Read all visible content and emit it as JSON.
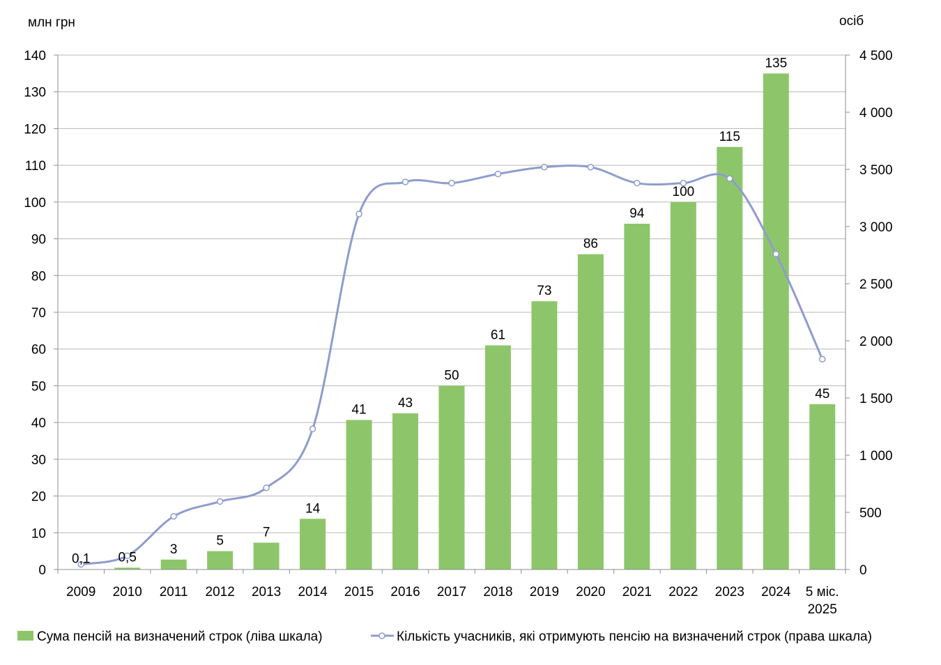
{
  "chart_data": {
    "type": "bar",
    "left_unit": "млн  грн",
    "right_unit": "осіб",
    "categories": [
      [
        "2009"
      ],
      [
        "2010"
      ],
      [
        "2011"
      ],
      [
        "2012"
      ],
      [
        "2013"
      ],
      [
        "2014"
      ],
      [
        "2015"
      ],
      [
        "2016"
      ],
      [
        "2017"
      ],
      [
        "2018"
      ],
      [
        "2019"
      ],
      [
        "2020"
      ],
      [
        "2021"
      ],
      [
        "2022"
      ],
      [
        "2023"
      ],
      [
        "2024"
      ],
      [
        "5 міс.",
        "2025"
      ]
    ],
    "left_axis": {
      "min": 0,
      "max": 140,
      "step": 10,
      "ticks": [
        "0",
        "10",
        "20",
        "30",
        "40",
        "50",
        "60",
        "70",
        "80",
        "90",
        "100",
        "110",
        "120",
        "130",
        "140"
      ]
    },
    "right_axis": {
      "min": 0,
      "max": 4500,
      "step": 500,
      "ticks": [
        "0",
        "500",
        "1 000",
        "1 500",
        "2 000",
        "2 500",
        "3 000",
        "3 500",
        "4 000",
        "4 500"
      ]
    },
    "grid": true,
    "legend_position": "bottom",
    "series": [
      {
        "name": "Сума пенсій на визначений строк (ліва шкала)",
        "type": "bar",
        "axis": "left",
        "color": "#8dc66a",
        "values": [
          0.1,
          0.5,
          2.7,
          5,
          7.3,
          13.8,
          40.7,
          42.5,
          50,
          61,
          73,
          85.8,
          94.1,
          100,
          115,
          135,
          45
        ],
        "labels": [
          "0,1",
          "0,5",
          "3",
          "5",
          "7",
          "14",
          "41",
          "43",
          "50",
          "61",
          "73",
          "86",
          "94",
          "100",
          "115",
          "135",
          "45"
        ]
      },
      {
        "name": "Кількість учасників, які отримують пенсію на визначений строк (права шкала)",
        "type": "line",
        "axis": "right",
        "color": "#8e9ccd",
        "values": [
          45,
          120,
          465,
          595,
          715,
          1230,
          3110,
          3390,
          3380,
          3460,
          3520,
          3520,
          3380,
          3380,
          3420,
          2760,
          1840
        ]
      }
    ]
  }
}
